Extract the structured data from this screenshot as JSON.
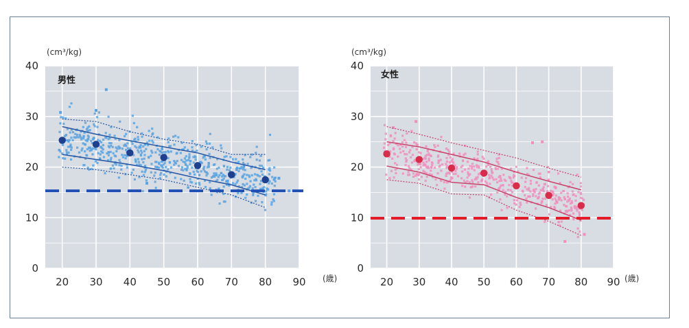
{
  "chart_data": [
    {
      "type": "scatter",
      "title": "男性",
      "y_unit": "(cm³/kg)",
      "x_unit": "(歳)",
      "xlim": [
        15,
        90
      ],
      "ylim": [
        0,
        40
      ],
      "x_ticks": [
        "20",
        "30",
        "40",
        "50",
        "60",
        "70",
        "80",
        "90"
      ],
      "y_ticks": [
        "0",
        "10",
        "20",
        "30",
        "40"
      ],
      "grid": true,
      "threshold": 15.3,
      "colors": {
        "point": "#5aa3e0",
        "mean": "#1f3f8f",
        "line": "#2b5aa6",
        "threshold": "#1f4fb5",
        "background": "#d8dce3"
      },
      "means": {
        "x": [
          20,
          30,
          40,
          50,
          60,
          70,
          80
        ],
        "y": [
          25.3,
          24.5,
          22.8,
          21.9,
          20.3,
          18.5,
          17.5
        ]
      },
      "upper_sd": {
        "x": [
          20,
          30,
          40,
          50,
          60,
          70,
          80
        ],
        "y": [
          28.0,
          26.5,
          25.2,
          24.0,
          22.8,
          21.0,
          19.5
        ]
      },
      "lower_sd": {
        "x": [
          20,
          30,
          40,
          50,
          60,
          70,
          80
        ],
        "y": [
          22.5,
          21.5,
          20.5,
          19.3,
          17.8,
          16.5,
          14.5
        ]
      },
      "upper_range": {
        "x": [
          20,
          30,
          40,
          50,
          60,
          70,
          80
        ],
        "y": [
          29.5,
          29.0,
          27.0,
          25.5,
          24.5,
          22.5,
          22.5
        ]
      },
      "lower_range": {
        "x": [
          20,
          30,
          40,
          50,
          60,
          70,
          80
        ],
        "y": [
          20.0,
          19.5,
          18.5,
          17.5,
          16.0,
          14.5,
          12.0
        ]
      },
      "scatter": {
        "seed": 7,
        "count": 650,
        "x_range": [
          19,
          83
        ],
        "spread_sd": 2.4,
        "outliers": [
          [
            33,
            35.3
          ],
          [
            30,
            31.2
          ],
          [
            19.5,
            30.8
          ],
          [
            45,
            16.8
          ],
          [
            84,
            17.8
          ],
          [
            87,
            15.3
          ]
        ]
      }
    },
    {
      "type": "scatter",
      "title": "女性",
      "y_unit": "(cm³/kg)",
      "x_unit": "(歳)",
      "xlim": [
        15,
        90
      ],
      "ylim": [
        0,
        40
      ],
      "x_ticks": [
        "20",
        "30",
        "40",
        "50",
        "60",
        "70",
        "80",
        "90"
      ],
      "y_ticks": [
        "0",
        "10",
        "20",
        "30",
        "40"
      ],
      "grid": true,
      "threshold": 9.9,
      "colors": {
        "point": "#f08fbd",
        "mean": "#d92b4a",
        "line": "#c9476e",
        "threshold": "#e41c2a",
        "background": "#d8dce3"
      },
      "means": {
        "x": [
          20,
          30,
          40,
          50,
          60,
          70,
          80
        ],
        "y": [
          22.6,
          21.5,
          19.8,
          18.8,
          16.3,
          14.4,
          12.4
        ]
      },
      "upper_sd": {
        "x": [
          20,
          30,
          40,
          50,
          60,
          70,
          80
        ],
        "y": [
          25.0,
          24.0,
          22.5,
          21.0,
          19.0,
          17.2,
          15.5
        ]
      },
      "lower_sd": {
        "x": [
          20,
          30,
          40,
          50,
          60,
          70,
          80
        ],
        "y": [
          20.2,
          19.0,
          17.0,
          16.5,
          14.0,
          12.0,
          9.5
        ]
      },
      "upper_range": {
        "x": [
          20,
          30,
          40,
          50,
          60,
          70,
          80
        ],
        "y": [
          28.0,
          26.5,
          24.8,
          23.3,
          21.8,
          19.8,
          18.0
        ]
      },
      "lower_range": {
        "x": [
          20,
          30,
          40,
          50,
          60,
          70,
          80
        ],
        "y": [
          17.5,
          16.8,
          14.7,
          14.5,
          11.5,
          9.3,
          6.5
        ]
      },
      "scatter": {
        "seed": 13,
        "count": 520,
        "x_range": [
          19,
          81
        ],
        "spread_sd": 2.2,
        "outliers": [
          [
            29,
            29.0
          ],
          [
            65,
            24.8
          ],
          [
            68,
            25.0
          ],
          [
            75,
            5.3
          ],
          [
            81,
            6.7
          ],
          [
            22,
            27.8
          ]
        ]
      }
    }
  ]
}
